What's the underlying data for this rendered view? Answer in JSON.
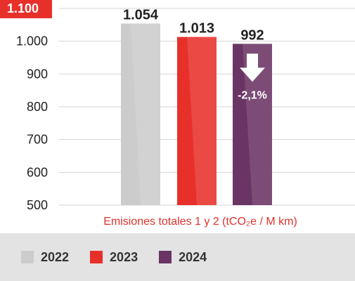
{
  "chart_data": {
    "type": "bar",
    "categories": [
      "2022",
      "2023",
      "2024"
    ],
    "values": [
      1054,
      1013,
      992
    ],
    "value_labels": [
      "1.054",
      "1.013",
      "992"
    ],
    "xlabel": "Emisiones totales 1 y 2 (tCO₂e / M km)",
    "ylim": [
      500,
      1100
    ],
    "yticks": [
      500,
      600,
      700,
      800,
      900,
      1000,
      1100
    ],
    "ytick_labels": [
      "500",
      "600",
      "700",
      "800",
      "900",
      "1.000",
      "1.100"
    ],
    "highlighted_tick": "1.100",
    "colors": [
      "#cccccc",
      "#e8302b",
      "#6a3465"
    ],
    "annotation": {
      "text": "-2,1%",
      "category": "2024",
      "icon": "down-arrow-icon"
    },
    "legend": {
      "placement": "bottom",
      "entries": [
        "2022",
        "2023",
        "2024"
      ]
    },
    "grid": true
  }
}
